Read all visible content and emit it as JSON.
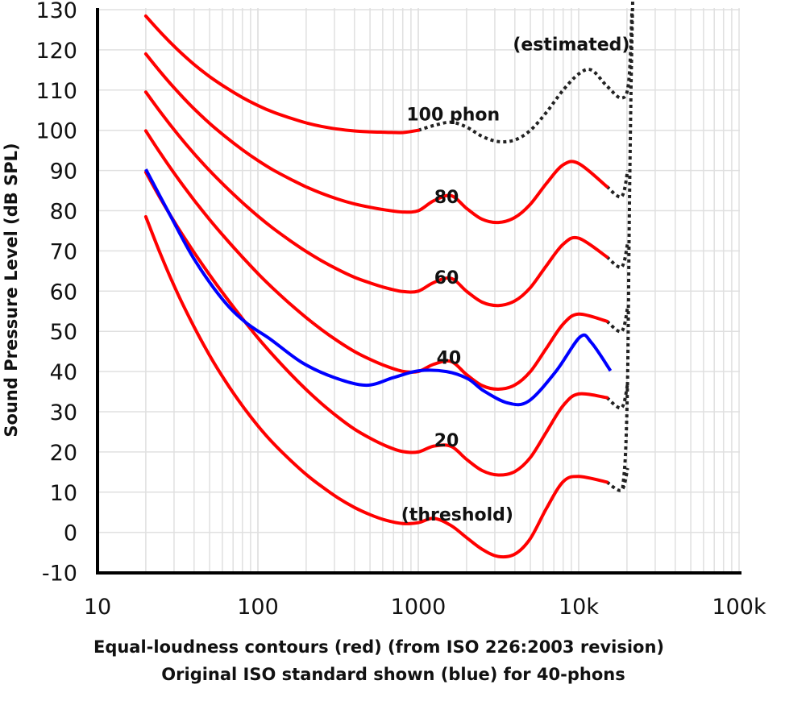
{
  "chart_data": {
    "type": "line",
    "xscale": "log",
    "xlim": [
      10,
      100000
    ],
    "ylim": [
      -10,
      130
    ],
    "grid": true,
    "x_ticks": [
      10,
      100,
      1000,
      10000,
      100000
    ],
    "x_tick_labels": [
      "10",
      "100",
      "1000",
      "10k",
      "100k"
    ],
    "y_ticks": [
      -10,
      0,
      10,
      20,
      30,
      40,
      50,
      60,
      70,
      80,
      90,
      100,
      110,
      120,
      130
    ],
    "y_tick_labels": [
      "-10",
      "0",
      "10",
      "20",
      "30",
      "40",
      "50",
      "60",
      "70",
      "80",
      "90",
      "100",
      "110",
      "120",
      "130"
    ],
    "ylabel": "Sound Pressure Level (dB SPL)",
    "xlabel_lines": [
      "Equal-loudness contours (red) (from ISO 226:2003 revision)",
      "Original ISO standard shown (blue) for 40-phons"
    ],
    "colors": {
      "contour": "#ff0000",
      "original": "#0000ff",
      "estimated": "#222222",
      "grid": "#e0e0e0",
      "axis": "#000000"
    },
    "freqs": [
      20,
      25,
      31.5,
      40,
      50,
      63,
      80,
      100,
      125,
      160,
      200,
      250,
      315,
      400,
      500,
      630,
      800,
      1000,
      1250,
      1600,
      2000,
      2500,
      3150,
      4000,
      5000,
      6300,
      8000,
      10000,
      15000
    ],
    "series": [
      {
        "name": "threshold",
        "color": "red",
        "values": [
          78.5,
          68.7,
          59.5,
          51.1,
          44.0,
          37.5,
          31.5,
          26.5,
          22.1,
          17.9,
          14.4,
          11.4,
          8.6,
          6.2,
          4.4,
          3.0,
          2.2,
          2.4,
          3.5,
          1.7,
          -1.3,
          -4.2,
          -6.0,
          -5.4,
          -1.5,
          6.0,
          12.6,
          13.9,
          12.5
        ]
      },
      {
        "name": "20 phon",
        "color": "red",
        "values": [
          89.58,
          82.65,
          75.98,
          69.62,
          64.02,
          58.55,
          53.19,
          48.38,
          43.94,
          39.37,
          35.51,
          31.99,
          28.69,
          25.67,
          23.43,
          21.48,
          20.1,
          20.01,
          21.46,
          21.4,
          18.15,
          15.38,
          14.26,
          15.14,
          18.63,
          25.02,
          31.52,
          34.43,
          33.5
        ]
      },
      {
        "name": "40 phon",
        "color": "red",
        "values": [
          99.85,
          93.94,
          88.17,
          82.63,
          77.78,
          73.08,
          68.48,
          64.37,
          60.59,
          56.7,
          53.41,
          50.4,
          47.58,
          44.98,
          43.05,
          41.34,
          40.06,
          40.01,
          41.82,
          42.51,
          39.23,
          36.51,
          35.61,
          36.65,
          40.01,
          45.83,
          51.8,
          54.28,
          52.5
        ]
      },
      {
        "name": "60 phon",
        "color": "red",
        "values": [
          109.51,
          104.23,
          99.08,
          94.18,
          89.96,
          85.94,
          82.05,
          78.65,
          75.56,
          72.47,
          69.86,
          67.53,
          65.39,
          63.45,
          62.05,
          60.81,
          59.89,
          60.01,
          62.15,
          63.19,
          59.96,
          57.26,
          56.42,
          57.57,
          60.89,
          66.36,
          71.66,
          73.16,
          68.5
        ]
      },
      {
        "name": "80 phon",
        "color": "red",
        "values": [
          118.99,
          114.23,
          109.65,
          105.34,
          101.72,
          98.36,
          95.17,
          92.48,
          90.09,
          87.82,
          85.92,
          84.31,
          82.89,
          81.68,
          80.86,
          80.17,
          79.67,
          80.01,
          82.48,
          83.74,
          80.59,
          77.88,
          77.07,
          78.31,
          81.62,
          86.81,
          91.41,
          91.74,
          86.0
        ]
      },
      {
        "name": "100 phon",
        "color": "red",
        "values": [
          128.41,
          124.15,
          120.11,
          116.38,
          113.35,
          110.65,
          108.16,
          106.17,
          104.48,
          103.03,
          101.85,
          100.97,
          100.3,
          99.83,
          99.62,
          99.5,
          99.44,
          100.01,
          null,
          null,
          null,
          null,
          null,
          null,
          null,
          null,
          null,
          null,
          null
        ]
      }
    ],
    "original_40_phon": {
      "name": "Original ISO 40 phon",
      "points": [
        [
          20,
          90.3
        ],
        [
          28,
          79.3
        ],
        [
          40,
          68
        ],
        [
          60,
          58
        ],
        [
          84,
          52.2
        ],
        [
          120,
          48
        ],
        [
          189,
          42.2
        ],
        [
          300,
          38.5
        ],
        [
          475,
          36.6
        ],
        [
          700,
          38.5
        ],
        [
          1011,
          40.2
        ],
        [
          1500,
          40
        ],
        [
          2040,
          38.2
        ],
        [
          2560,
          35.2
        ],
        [
          3600,
          32.2
        ],
        [
          4860,
          32.6
        ],
        [
          7200,
          40
        ],
        [
          10200,
          48.6
        ],
        [
          12000,
          47.2
        ],
        [
          15800,
          40.2
        ]
      ]
    },
    "estimated": [
      {
        "name": "100 phon (estimated)",
        "points": [
          [
            1000,
            100.01
          ],
          [
            1250,
            101.2
          ],
          [
            1600,
            102
          ],
          [
            2000,
            100.8
          ],
          [
            2500,
            98.5
          ],
          [
            3150,
            97.2
          ],
          [
            4000,
            97.6
          ],
          [
            5000,
            100
          ],
          [
            6300,
            104.5
          ],
          [
            8000,
            110
          ],
          [
            10000,
            114
          ],
          [
            12000,
            115
          ],
          [
            15000,
            111
          ],
          [
            18500,
            108
          ],
          [
            20500,
            112
          ],
          [
            21500,
            130
          ]
        ]
      },
      {
        "name": "80 phon (estimated)",
        "points": [
          [
            15000,
            86
          ],
          [
            18500,
            83.5
          ],
          [
            20200,
            90
          ]
        ]
      },
      {
        "name": "60 phon (estimated)",
        "points": [
          [
            15000,
            68.5
          ],
          [
            18500,
            66
          ],
          [
            20200,
            72
          ]
        ]
      },
      {
        "name": "40 phon (estimated)",
        "points": [
          [
            15000,
            52.5
          ],
          [
            18500,
            50
          ],
          [
            20200,
            56
          ]
        ]
      },
      {
        "name": "20 phon (estimated)",
        "points": [
          [
            15000,
            33.5
          ],
          [
            18500,
            31
          ],
          [
            20200,
            37
          ]
        ]
      },
      {
        "name": "threshold (estimated)",
        "points": [
          [
            15000,
            12.5
          ],
          [
            18500,
            10.5
          ],
          [
            20200,
            16
          ]
        ]
      },
      {
        "name": "upper limit (estimated)",
        "points": [
          [
            18800,
            11
          ],
          [
            19600,
            20
          ],
          [
            20200,
            40
          ],
          [
            20700,
            80
          ],
          [
            21200,
            110
          ],
          [
            21700,
            132
          ]
        ]
      }
    ],
    "annotations": [
      {
        "text": "(estimated)",
        "f": 9000,
        "db": 121.5
      },
      {
        "text": "100 phon",
        "f": 1650,
        "db": 104
      },
      {
        "text": "80",
        "f": 1500,
        "db": 83.5
      },
      {
        "text": "60",
        "f": 1500,
        "db": 63.5
      },
      {
        "text": "40",
        "f": 1550,
        "db": 43.5
      },
      {
        "text": "20",
        "f": 1500,
        "db": 23
      },
      {
        "text": "(threshold)",
        "f": 1750,
        "db": 4.5
      }
    ]
  }
}
